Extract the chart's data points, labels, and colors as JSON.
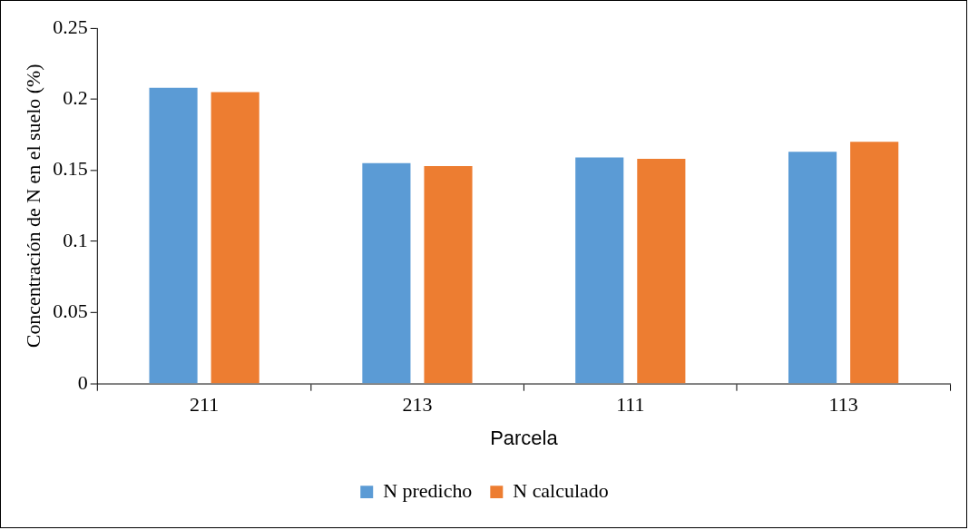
{
  "chart_data": {
    "type": "bar",
    "xlabel": "Parcela",
    "ylabel": "Concentración de N en el suelo (%)",
    "categories": [
      "211",
      "213",
      "111",
      "113"
    ],
    "series": [
      {
        "name": "N predicho",
        "color": "#5b9bd5",
        "values": [
          0.208,
          0.155,
          0.159,
          0.163
        ]
      },
      {
        "name": "N calculado",
        "color": "#ed7d31",
        "values": [
          0.205,
          0.153,
          0.158,
          0.17
        ]
      }
    ],
    "ylim": [
      0,
      0.25
    ],
    "yticks": [
      0,
      0.05,
      0.1,
      0.15,
      0.2,
      0.25
    ],
    "grid": false,
    "legend": "bottom"
  }
}
